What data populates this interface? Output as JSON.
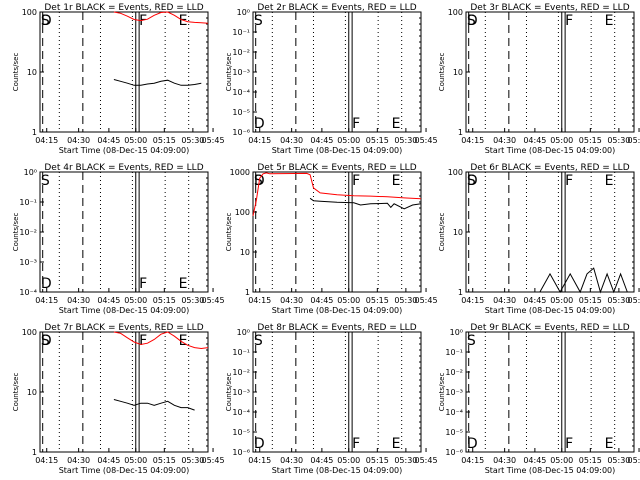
{
  "figure": {
    "title_template": "Det {det} BLACK = Events, RED = LLD",
    "line_colors": {
      "events": "#000000",
      "lld": "#ff0000"
    }
  },
  "chart_data": [
    {
      "type": "line",
      "title": "Det 1r BLACK = Events, RED = LLD",
      "xlabel": "Start Time (08-Dec-15 04:09:00)",
      "ylabel": "Counts/sec",
      "x_tick_labels": [
        "04:15",
        "04:30",
        "04:45",
        "05:00",
        "05:15",
        "05:30",
        "05:45"
      ],
      "y_tick_labels": [
        "1",
        "10",
        "100"
      ],
      "markers": {
        "S": "S",
        "D": "D",
        "F": "F",
        "E": "E"
      },
      "series": [
        {
          "name": "LLD",
          "color": "#ff0000",
          "points": [
            [
              0.44,
              100
            ],
            [
              0.48,
              95
            ],
            [
              0.52,
              85
            ],
            [
              0.56,
              75
            ],
            [
              0.6,
              72
            ],
            [
              0.64,
              76
            ],
            [
              0.68,
              88
            ],
            [
              0.72,
              98
            ],
            [
              0.76,
              100
            ],
            [
              0.8,
              88
            ],
            [
              0.84,
              75
            ],
            [
              0.88,
              69
            ],
            [
              0.92,
              67
            ],
            [
              0.96,
              66
            ],
            [
              1.0,
              65
            ]
          ]
        },
        {
          "name": "Events",
          "color": "#000000",
          "points": [
            [
              0.44,
              7.5
            ],
            [
              0.48,
              7
            ],
            [
              0.52,
              6.5
            ],
            [
              0.56,
              6
            ],
            [
              0.6,
              6
            ],
            [
              0.64,
              6.3
            ],
            [
              0.68,
              6.5
            ],
            [
              0.72,
              7
            ],
            [
              0.76,
              7.3
            ],
            [
              0.8,
              6.5
            ],
            [
              0.84,
              6
            ],
            [
              0.88,
              6
            ],
            [
              0.92,
              6.2
            ],
            [
              0.96,
              6.5
            ]
          ]
        }
      ]
    },
    {
      "type": "line",
      "title": "Det 2r BLACK = Events, RED = LLD",
      "xlabel": "Start Time (08-Dec-15 04:09:00)",
      "ylabel": "Counts/sec",
      "x_tick_labels": [
        "04:15",
        "04:30",
        "04:45",
        "05:00",
        "05:15",
        "05:30",
        "05:45"
      ],
      "y_tick_labels": [
        "10⁰",
        "10⁻¹",
        "10⁻²",
        "10⁻³",
        "10⁻⁴",
        "10⁻⁵",
        "10⁻⁶"
      ],
      "markers": {
        "S": "S",
        "D": "D",
        "F": "F",
        "E": "E"
      },
      "series": []
    },
    {
      "type": "line",
      "title": "Det 3r BLACK = Events, RED = LLD",
      "xlabel": "Start Time (08-Dec-15 04:09:00)",
      "ylabel": "Counts/sec",
      "x_tick_labels": [
        "04:15",
        "04:30",
        "04:45",
        "05:00",
        "05:15",
        "05:30",
        "05:45"
      ],
      "y_tick_labels": [
        "1",
        "10",
        "100"
      ],
      "markers": {
        "S": "S",
        "D": "D",
        "F": "F",
        "E": "E"
      },
      "series": []
    },
    {
      "type": "line",
      "title": "Det 4r BLACK = Events, RED = LLD",
      "xlabel": "Start Time (08-Dec-15 04:09:00)",
      "ylabel": "Counts/sec",
      "x_tick_labels": [
        "04:15",
        "04:30",
        "04:45",
        "05:00",
        "05:15",
        "05:30",
        "05:45"
      ],
      "y_tick_labels": [
        "10⁰",
        "10⁻¹",
        "10⁻²",
        "10⁻³",
        "10⁻⁴"
      ],
      "markers": {
        "S": "S",
        "D": "D",
        "F": "F",
        "E": "E"
      },
      "series": []
    },
    {
      "type": "line",
      "title": "Det 5r BLACK = Events, RED = LLD",
      "xlabel": "Start Time (08-Dec-15 04:09:00)",
      "ylabel": "Counts/sec",
      "x_tick_labels": [
        "04:15",
        "04:30",
        "04:45",
        "05:00",
        "05:15",
        "05:30",
        "05:45"
      ],
      "y_tick_labels": [
        "1",
        "10",
        "100",
        "1000"
      ],
      "markers": {
        "S": "S",
        "D": "D",
        "F": "F",
        "E": "E"
      },
      "series": [
        {
          "name": "LLD",
          "color": "#ff0000",
          "points": [
            [
              0.0,
              80
            ],
            [
              0.02,
              200
            ],
            [
              0.04,
              700
            ],
            [
              0.06,
              900
            ],
            [
              0.08,
              950
            ],
            [
              0.1,
              900
            ],
            [
              0.32,
              920
            ],
            [
              0.34,
              850
            ],
            [
              0.36,
              400
            ],
            [
              0.4,
              300
            ],
            [
              0.5,
              270
            ],
            [
              0.6,
              255
            ],
            [
              0.7,
              250
            ],
            [
              0.8,
              240
            ],
            [
              0.9,
              225
            ],
            [
              1.0,
              215
            ]
          ]
        },
        {
          "name": "Events",
          "color": "#000000",
          "points": [
            [
              0.34,
              220
            ],
            [
              0.36,
              190
            ],
            [
              0.4,
              185
            ],
            [
              0.5,
              175
            ],
            [
              0.6,
              170
            ],
            [
              0.64,
              150
            ],
            [
              0.7,
              160
            ],
            [
              0.8,
              165
            ],
            [
              0.82,
              130
            ],
            [
              0.84,
              160
            ],
            [
              0.9,
              120
            ],
            [
              0.95,
              150
            ],
            [
              1.0,
              160
            ]
          ]
        }
      ]
    },
    {
      "type": "line",
      "title": "Det 6r BLACK = Events, RED = LLD",
      "xlabel": "Start Time (08-Dec-15 04:09:00)",
      "ylabel": "Counts/sec",
      "x_tick_labels": [
        "04:15",
        "04:30",
        "04:45",
        "05:00",
        "05:15",
        "05:30",
        "05:45"
      ],
      "y_tick_labels": [
        "1",
        "10",
        "100"
      ],
      "markers": {
        "S": "S",
        "D": "D",
        "F": "F",
        "E": "E"
      },
      "series": [
        {
          "name": "Events",
          "color": "#000000",
          "points": [
            [
              0.44,
              1
            ],
            [
              0.5,
              2
            ],
            [
              0.56,
              1
            ],
            [
              0.62,
              2
            ],
            [
              0.68,
              1
            ],
            [
              0.72,
              2
            ],
            [
              0.76,
              2.5
            ],
            [
              0.8,
              1
            ],
            [
              0.84,
              2
            ],
            [
              0.88,
              1
            ],
            [
              0.92,
              2
            ],
            [
              0.96,
              1
            ]
          ]
        }
      ]
    },
    {
      "type": "line",
      "title": "Det 7r BLACK = Events, RED = LLD",
      "xlabel": "Start Time (08-Dec-15 04:09:00)",
      "ylabel": "Counts/sec",
      "x_tick_labels": [
        "04:15",
        "04:30",
        "04:45",
        "05:00",
        "05:15",
        "05:30",
        "05:45"
      ],
      "y_tick_labels": [
        "1",
        "10",
        "100"
      ],
      "markers": {
        "S": "S",
        "D": "D",
        "F": "F",
        "E": "E"
      },
      "series": [
        {
          "name": "LLD",
          "color": "#ff0000",
          "points": [
            [
              0.44,
              100
            ],
            [
              0.48,
              95
            ],
            [
              0.52,
              80
            ],
            [
              0.56,
              68
            ],
            [
              0.6,
              62
            ],
            [
              0.64,
              65
            ],
            [
              0.68,
              75
            ],
            [
              0.72,
              92
            ],
            [
              0.76,
              100
            ],
            [
              0.8,
              85
            ],
            [
              0.84,
              70
            ],
            [
              0.88,
              60
            ],
            [
              0.92,
              55
            ],
            [
              0.96,
              53
            ],
            [
              1.0,
              55
            ]
          ]
        },
        {
          "name": "Events",
          "color": "#000000",
          "points": [
            [
              0.44,
              7.5
            ],
            [
              0.48,
              7
            ],
            [
              0.52,
              6.5
            ],
            [
              0.56,
              6
            ],
            [
              0.6,
              6.5
            ],
            [
              0.64,
              6.5
            ],
            [
              0.68,
              6
            ],
            [
              0.72,
              6.5
            ],
            [
              0.76,
              7
            ],
            [
              0.8,
              6
            ],
            [
              0.84,
              5.5
            ],
            [
              0.88,
              5.5
            ],
            [
              0.92,
              5
            ]
          ]
        }
      ]
    },
    {
      "type": "line",
      "title": "Det 8r BLACK = Events, RED = LLD",
      "xlabel": "Start Time (08-Dec-15 04:09:00)",
      "ylabel": "Counts/sec",
      "x_tick_labels": [
        "04:15",
        "04:30",
        "04:45",
        "05:00",
        "05:15",
        "05:30",
        "05:45"
      ],
      "y_tick_labels": [
        "10⁰",
        "10⁻¹",
        "10⁻²",
        "10⁻³",
        "10⁻⁴",
        "10⁻⁵",
        "10⁻⁶"
      ],
      "markers": {
        "S": "S",
        "D": "D",
        "F": "F",
        "E": "E"
      },
      "series": []
    },
    {
      "type": "line",
      "title": "Det 9r BLACK = Events, RED = LLD",
      "xlabel": "Start Time (08-Dec-15 04:09:00)",
      "ylabel": "Counts/sec",
      "x_tick_labels": [
        "04:15",
        "04:30",
        "04:45",
        "05:00",
        "05:15",
        "05:30",
        "05:45"
      ],
      "y_tick_labels": [
        "10⁰",
        "10⁻¹",
        "10⁻²",
        "10⁻³",
        "10⁻⁴",
        "10⁻⁵",
        "10⁻⁶"
      ],
      "markers": {
        "S": "S",
        "D": "D",
        "F": "F",
        "E": "E"
      },
      "series": []
    }
  ]
}
